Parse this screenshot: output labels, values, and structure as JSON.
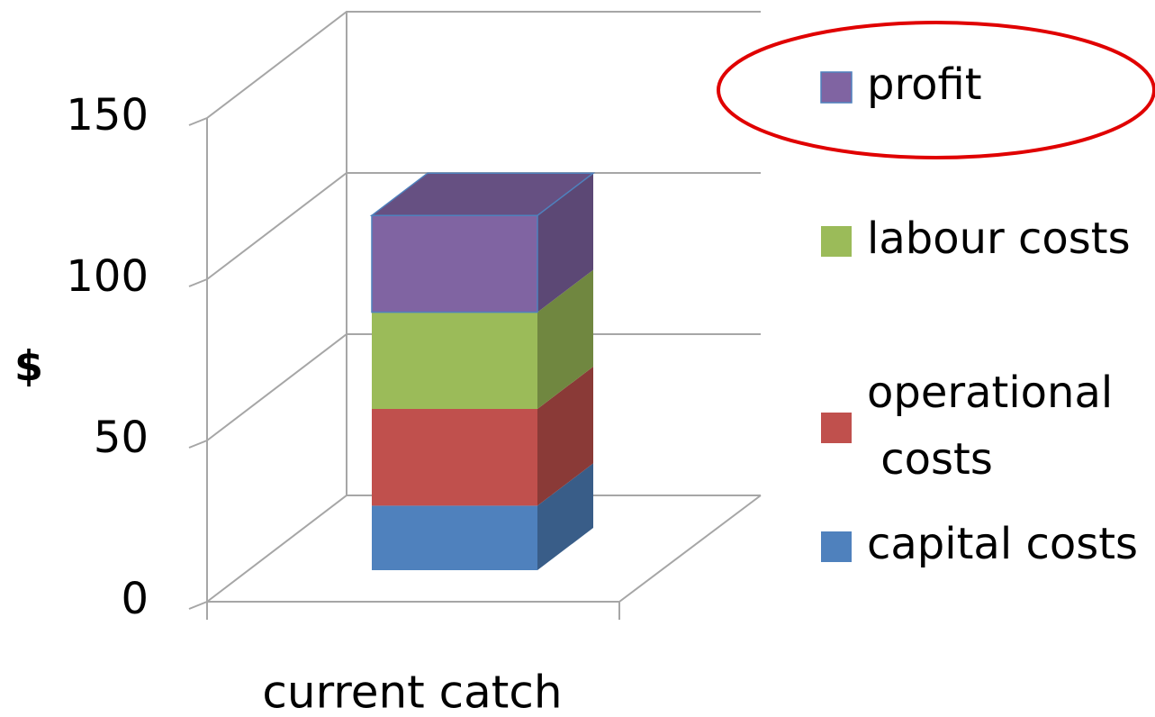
{
  "chart_data": {
    "type": "bar3d_stacked",
    "categories": [
      "current catch"
    ],
    "ylabel": "$",
    "ylim": [
      0,
      150
    ],
    "yticks": [
      0,
      50,
      100,
      150
    ],
    "grid": true,
    "series": [
      {
        "name": "capital costs",
        "color": "#4f81bd",
        "values": [
          20
        ]
      },
      {
        "name": "operational costs",
        "color": "#c0504d",
        "values": [
          30
        ]
      },
      {
        "name": "labour costs",
        "color": "#9bbb59",
        "values": [
          30
        ]
      },
      {
        "name": "profit",
        "color": "#8064a2",
        "values": [
          30
        ]
      }
    ]
  }
}
